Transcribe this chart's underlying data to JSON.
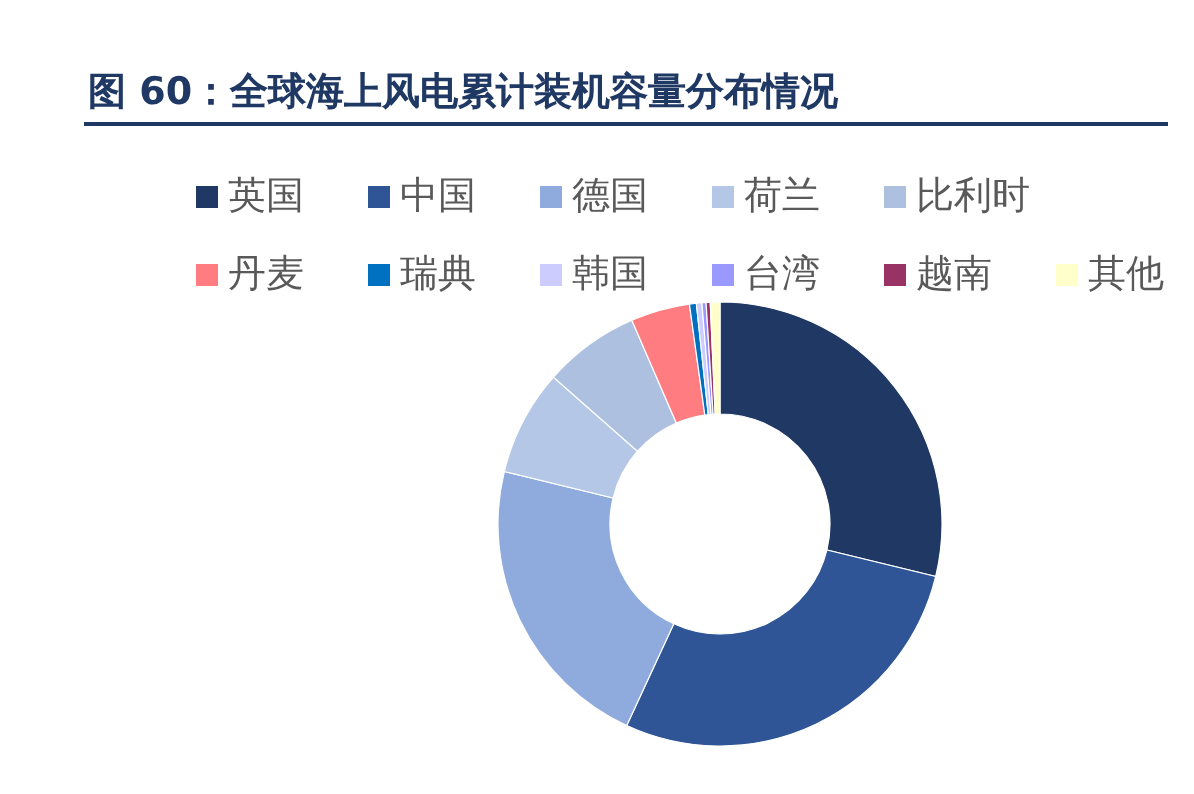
{
  "chart_data": {
    "type": "donut",
    "title": "图 60：全球海上风电累计装机容量分布情况",
    "categories": [
      "英国",
      "中国",
      "德国",
      "荷兰",
      "比利时",
      "丹麦",
      "瑞典",
      "韩国",
      "台湾",
      "越南",
      "其他"
    ],
    "values": [
      28.8,
      28.1,
      21.9,
      7.7,
      7.0,
      4.3,
      0.5,
      0.4,
      0.3,
      0.3,
      0.7
    ],
    "colors": [
      "#1f3864",
      "#2f5597",
      "#8faadc",
      "#b4c7e7",
      "#adc0e0",
      "#ff7c80",
      "#0070c0",
      "#ccccff",
      "#9999ff",
      "#993366",
      "#ffffcc"
    ],
    "legend": "top"
  }
}
